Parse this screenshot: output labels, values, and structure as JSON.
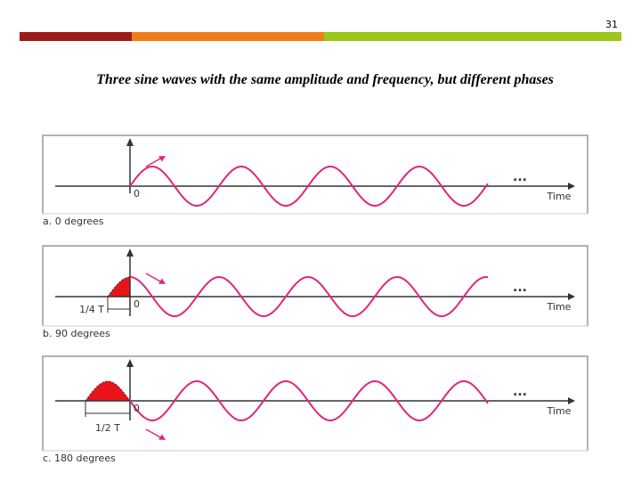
{
  "page_number": "31",
  "title": "Three sine waves with the same amplitude and frequency, but different phases",
  "panels": [
    {
      "origin_label": "0",
      "axis_label": "Time",
      "ellipsis": "...",
      "caption": "a. 0 degrees"
    },
    {
      "origin_label": "0",
      "axis_label": "Time",
      "ellipsis": "...",
      "offset_label": "1/4 T",
      "caption": "b. 90 degrees"
    },
    {
      "origin_label": "0",
      "axis_label": "Time",
      "ellipsis": "...",
      "offset_label": "1/2 T",
      "caption": "c. 180 degrees"
    }
  ]
}
